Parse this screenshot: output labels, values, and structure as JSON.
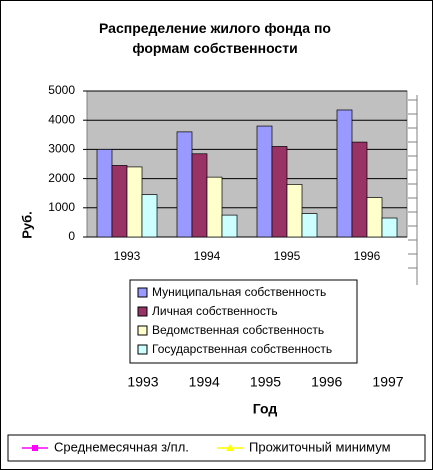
{
  "chart_data": [
    {
      "type": "bar",
      "title": "Распределение жилого фонда по формам собственности",
      "y_label": "Руб.",
      "categories": [
        "1993",
        "1994",
        "1995",
        "1996"
      ],
      "series": [
        {
          "name": "Муниципальная собственность",
          "color": "#9999ff",
          "values": [
            3000,
            3600,
            3800,
            4350
          ]
        },
        {
          "name": "Личная собственность",
          "color": "#993366",
          "values": [
            2450,
            2850,
            3100,
            3250
          ]
        },
        {
          "name": "Ведомственная собственность",
          "color": "#ffffcc",
          "values": [
            2400,
            2050,
            1800,
            1350
          ]
        },
        {
          "name": "Государственная собственность",
          "color": "#ccffff",
          "values": [
            1450,
            750,
            800,
            650
          ]
        }
      ],
      "ylim": [
        0,
        5000
      ],
      "yticks": [
        0,
        1000,
        2000,
        3000,
        4000,
        5000
      ],
      "grid": true,
      "plot_color": "#c0c0c0"
    },
    {
      "type": "line",
      "x_label": "Год",
      "categories": [
        "1993",
        "1994",
        "1995",
        "1996",
        "1997"
      ],
      "series": [
        {
          "name": "Среднемесячная з/пл.",
          "color": "#ff00ff"
        },
        {
          "name": "Прожиточный минимум",
          "color": "#ffff00"
        }
      ]
    }
  ]
}
